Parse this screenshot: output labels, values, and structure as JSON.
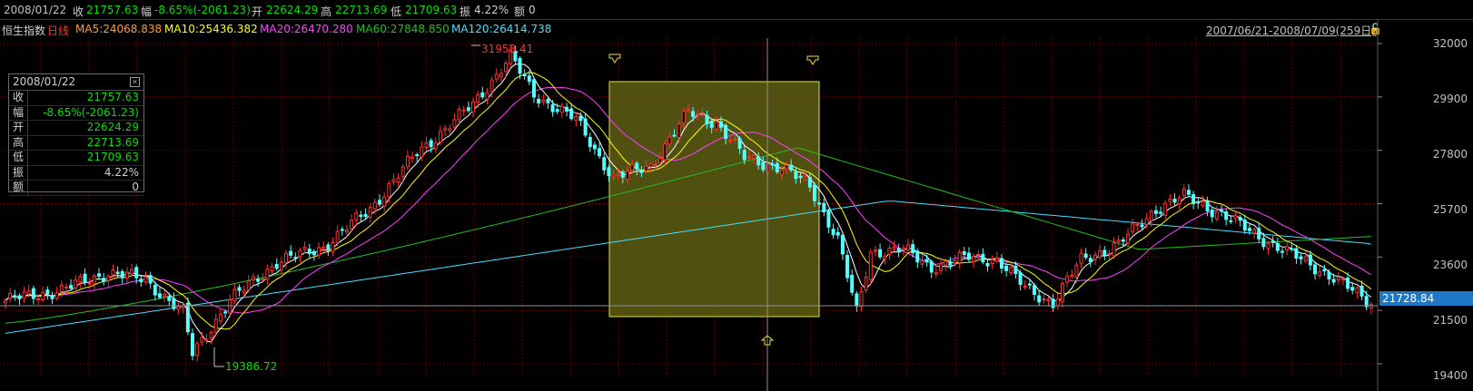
{
  "header": {
    "date": "2008/01/22",
    "close_label": "收",
    "close_value": "21757.63",
    "change_label": "幅",
    "change_value": "-8.65%(-2061.23)",
    "open_label": "开",
    "open_value": "22624.29",
    "high_label": "高",
    "high_value": "22713.69",
    "low_label": "低",
    "low_value": "21709.63",
    "amp_label": "振",
    "amp_value": "4.22%",
    "amount_label": "额",
    "amount_value": "0"
  },
  "ma_bar": {
    "index_name": "恒生指数",
    "period": "日线",
    "ma5": "MA5:24068.838",
    "ma10": "MA10:25436.382",
    "ma20": "MA20:26470.280",
    "ma60": "MA60:27848.850",
    "ma120": "MA120:26414.738",
    "range": "2007/06/21-2008/07/09(259日)"
  },
  "info_panel": {
    "date": "2008/01/22",
    "rows": [
      {
        "k": "收",
        "v": "21757.63"
      },
      {
        "k": "幅",
        "v": "-8.65%(-2061.23)"
      },
      {
        "k": "开",
        "v": "22624.29"
      },
      {
        "k": "高",
        "v": "22713.69"
      },
      {
        "k": "低",
        "v": "21709.63"
      },
      {
        "k": "振",
        "v": "4.22%"
      },
      {
        "k": "额",
        "v": "0"
      }
    ]
  },
  "annotations": {
    "high_marker": "31958.41",
    "low_marker": "19386.72",
    "last_price": "21728.84"
  },
  "colors": {
    "up": "#ff3232",
    "down": "#54ffff",
    "ma5": "#ffffff",
    "ma10": "#ffff00",
    "ma20": "#ff40ff",
    "ma60": "#20c020",
    "ma120": "#40e0ff",
    "grid": "#8b0000",
    "selection": "#6b6b16"
  },
  "chart_data": {
    "type": "candlestick",
    "ylim": [
      19000,
      32500
    ],
    "y_ticks": [
      32000,
      29900,
      27800,
      25700,
      23600,
      21500,
      19400
    ],
    "y_tick_labels": [
      "32000",
      "29900",
      "27800",
      "25700",
      "23600",
      "21500",
      "19400"
    ],
    "anchors": [
      [
        0,
        21900
      ],
      [
        12,
        22300
      ],
      [
        22,
        23000
      ],
      [
        30,
        22700
      ],
      [
        38,
        21400
      ],
      [
        40,
        19800
      ],
      [
        48,
        21900
      ],
      [
        58,
        23400
      ],
      [
        68,
        24000
      ],
      [
        78,
        25500
      ],
      [
        88,
        27700
      ],
      [
        100,
        29600
      ],
      [
        108,
        31500
      ],
      [
        113,
        30000
      ],
      [
        122,
        29000
      ],
      [
        130,
        26700
      ],
      [
        138,
        27200
      ],
      [
        146,
        29300
      ],
      [
        152,
        28900
      ],
      [
        158,
        27500
      ],
      [
        166,
        27100
      ],
      [
        172,
        26400
      ],
      [
        178,
        24300
      ],
      [
        182,
        21400
      ],
      [
        185,
        23800
      ],
      [
        192,
        23900
      ],
      [
        198,
        23200
      ],
      [
        206,
        23600
      ],
      [
        212,
        23500
      ],
      [
        218,
        22400
      ],
      [
        224,
        21800
      ],
      [
        230,
        23500
      ],
      [
        238,
        24100
      ],
      [
        246,
        25500
      ],
      [
        252,
        26000
      ],
      [
        260,
        25300
      ],
      [
        268,
        24400
      ],
      [
        276,
        23600
      ],
      [
        284,
        22800
      ],
      [
        292,
        21728
      ]
    ],
    "ma120": {
      "start": 20600,
      "end": 24100
    },
    "ma60": {
      "start": 21000,
      "peak": 27900,
      "end": 24400
    }
  }
}
